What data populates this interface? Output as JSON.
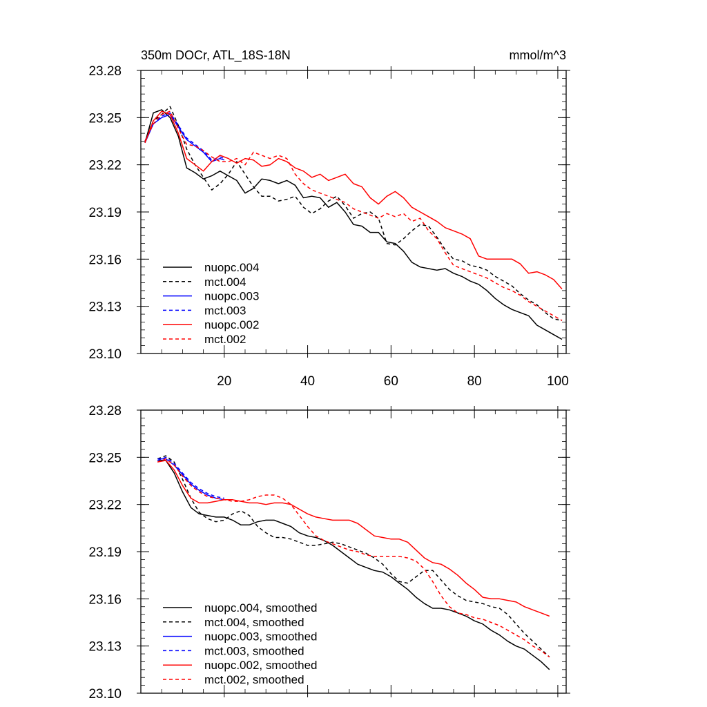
{
  "chart_data": [
    {
      "type": "line",
      "title": "350m DOCr, ATL_18S-18N",
      "units_label": "mmol/m^3",
      "xlabel": "",
      "ylabel": "",
      "xlim": [
        0,
        102
      ],
      "ylim": [
        23.1,
        23.28
      ],
      "yticks": [
        "23.28",
        "23.25",
        "23.22",
        "23.19",
        "23.16",
        "23.13",
        "23.10"
      ],
      "xticks": [
        "20",
        "40",
        "60",
        "80",
        "100"
      ],
      "show_xtick_labels": true,
      "legend_position": "bottom-left",
      "series": [
        {
          "name": "nuopc.004",
          "color": "#000000",
          "dash": "solid",
          "x": [
            1,
            3,
            5,
            7,
            9,
            11,
            13,
            15,
            17,
            19,
            21,
            23,
            25,
            27,
            29,
            31,
            33,
            35,
            37,
            39,
            41,
            43,
            45,
            47,
            49,
            51,
            53,
            55,
            57,
            59,
            61,
            63,
            65,
            67,
            69,
            71,
            73,
            75,
            77,
            79,
            81,
            83,
            85,
            87,
            89,
            91,
            93,
            95,
            97,
            99,
            101
          ],
          "y": [
            23.234,
            23.253,
            23.255,
            23.25,
            23.238,
            23.218,
            23.215,
            23.211,
            23.213,
            23.216,
            23.213,
            23.21,
            23.202,
            23.205,
            23.211,
            23.21,
            23.208,
            23.21,
            23.207,
            23.199,
            23.2,
            23.199,
            23.193,
            23.196,
            23.19,
            23.182,
            23.181,
            23.177,
            23.177,
            23.171,
            23.17,
            23.165,
            23.158,
            23.155,
            23.154,
            23.153,
            23.154,
            23.151,
            23.149,
            23.146,
            23.144,
            23.14,
            23.135,
            23.131,
            23.128,
            23.126,
            23.124,
            23.118,
            23.115,
            23.112,
            23.109
          ]
        },
        {
          "name": "mct.004",
          "color": "#000000",
          "dash": "dashed",
          "x": [
            1,
            3,
            5,
            7,
            9,
            11,
            13,
            15,
            17,
            19,
            21,
            23,
            25,
            27,
            29,
            31,
            33,
            35,
            37,
            39,
            41,
            43,
            45,
            47,
            49,
            51,
            53,
            55,
            57,
            59,
            61,
            63,
            65,
            67,
            69,
            71,
            73,
            75,
            77,
            79,
            81,
            83,
            85,
            87,
            89,
            91,
            93,
            95,
            97,
            99,
            101
          ],
          "y": [
            23.235,
            23.248,
            23.252,
            23.257,
            23.245,
            23.23,
            23.22,
            23.212,
            23.204,
            23.208,
            23.214,
            23.222,
            23.214,
            23.206,
            23.2,
            23.2,
            23.197,
            23.198,
            23.2,
            23.193,
            23.189,
            23.192,
            23.197,
            23.2,
            23.194,
            23.186,
            23.189,
            23.19,
            23.186,
            23.17,
            23.169,
            23.173,
            23.178,
            23.182,
            23.181,
            23.174,
            23.166,
            23.16,
            23.159,
            23.156,
            23.155,
            23.153,
            23.149,
            23.146,
            23.143,
            23.138,
            23.134,
            23.131,
            23.126,
            23.122,
            23.121
          ]
        },
        {
          "name": "nuopc.003",
          "color": "#0000ff",
          "dash": "solid",
          "x": [
            1,
            3,
            5,
            7,
            9,
            11,
            13,
            15,
            17,
            19,
            20
          ],
          "y": [
            23.234,
            23.246,
            23.25,
            23.252,
            23.244,
            23.236,
            23.232,
            23.228,
            23.222,
            23.224,
            23.223
          ]
        },
        {
          "name": "mct.003",
          "color": "#0000ff",
          "dash": "dashed",
          "x": [
            1,
            3,
            5,
            7,
            9,
            11,
            13,
            15,
            17,
            19,
            20
          ],
          "y": [
            23.235,
            23.246,
            23.251,
            23.253,
            23.245,
            23.237,
            23.233,
            23.229,
            23.223,
            23.225,
            23.224
          ]
        },
        {
          "name": "nuopc.002",
          "color": "#ff0000",
          "dash": "solid",
          "x": [
            1,
            3,
            5,
            7,
            9,
            11,
            13,
            15,
            17,
            19,
            21,
            23,
            25,
            27,
            29,
            31,
            33,
            35,
            37,
            39,
            41,
            43,
            45,
            47,
            49,
            51,
            53,
            55,
            57,
            59,
            61,
            63,
            65,
            67,
            69,
            71,
            73,
            75,
            77,
            79,
            81,
            83,
            85,
            87,
            89,
            91,
            93,
            95,
            97,
            99,
            101
          ],
          "y": [
            23.234,
            23.248,
            23.254,
            23.252,
            23.24,
            23.224,
            23.22,
            23.216,
            23.222,
            23.226,
            23.224,
            23.221,
            23.224,
            23.223,
            23.219,
            23.22,
            23.224,
            23.222,
            23.218,
            23.216,
            23.212,
            23.214,
            23.21,
            23.212,
            23.214,
            23.208,
            23.206,
            23.199,
            23.195,
            23.2,
            23.203,
            23.199,
            23.193,
            23.19,
            23.187,
            23.184,
            23.18,
            23.178,
            23.176,
            23.173,
            23.162,
            23.16,
            23.16,
            23.16,
            23.16,
            23.157,
            23.151,
            23.152,
            23.15,
            23.147,
            23.141
          ]
        },
        {
          "name": "mct.002",
          "color": "#ff0000",
          "dash": "dashed",
          "x": [
            1,
            3,
            5,
            7,
            9,
            11,
            13,
            15,
            17,
            19,
            21,
            23,
            25,
            27,
            29,
            31,
            33,
            35,
            37,
            39,
            41,
            43,
            45,
            47,
            49,
            51,
            53,
            55,
            57,
            59,
            61,
            63,
            65,
            67,
            69,
            71,
            73,
            75,
            77,
            79,
            81,
            83,
            85,
            87,
            89,
            91,
            93,
            95,
            97,
            99,
            101
          ],
          "y": [
            23.235,
            23.246,
            23.252,
            23.254,
            23.243,
            23.233,
            23.232,
            23.229,
            23.225,
            23.222,
            23.222,
            23.224,
            23.22,
            23.228,
            23.226,
            23.224,
            23.226,
            23.224,
            23.214,
            23.208,
            23.204,
            23.202,
            23.2,
            23.198,
            23.196,
            23.192,
            23.19,
            23.188,
            23.186,
            23.189,
            23.187,
            23.189,
            23.184,
            23.186,
            23.178,
            23.173,
            23.164,
            23.156,
            23.154,
            23.152,
            23.15,
            23.148,
            23.145,
            23.142,
            23.14,
            23.137,
            23.133,
            23.13,
            23.127,
            23.124,
            23.121
          ]
        }
      ]
    },
    {
      "type": "line",
      "title": "",
      "xlabel": "",
      "ylabel": "",
      "xlim": [
        0,
        102
      ],
      "ylim": [
        23.1,
        23.28
      ],
      "yticks": [
        "23.28",
        "23.25",
        "23.22",
        "23.19",
        "23.16",
        "23.13",
        "23.10"
      ],
      "xticks": [
        "20",
        "40",
        "60",
        "80",
        "100"
      ],
      "show_xtick_labels": false,
      "legend_position": "bottom-left",
      "series": [
        {
          "name": "nuopc.004, smoothed",
          "color": "#000000",
          "dash": "solid",
          "x": [
            4,
            6,
            8,
            10,
            12,
            14,
            16,
            18,
            20,
            22,
            24,
            26,
            28,
            30,
            32,
            34,
            36,
            38,
            40,
            42,
            44,
            46,
            48,
            50,
            52,
            54,
            56,
            58,
            60,
            62,
            64,
            66,
            68,
            70,
            72,
            74,
            76,
            78,
            80,
            82,
            84,
            86,
            88,
            90,
            92,
            94,
            96,
            98
          ],
          "y": [
            23.248,
            23.248,
            23.24,
            23.228,
            23.218,
            23.214,
            23.213,
            23.212,
            23.212,
            23.21,
            23.207,
            23.207,
            23.209,
            23.21,
            23.21,
            23.208,
            23.206,
            23.202,
            23.2,
            23.199,
            23.197,
            23.194,
            23.19,
            23.186,
            23.182,
            23.18,
            23.178,
            23.177,
            23.174,
            23.17,
            23.166,
            23.161,
            23.157,
            23.154,
            23.154,
            23.153,
            23.151,
            23.149,
            23.146,
            23.144,
            23.14,
            23.137,
            23.133,
            23.13,
            23.128,
            23.124,
            23.12,
            23.115
          ]
        },
        {
          "name": "mct.004, smoothed",
          "color": "#000000",
          "dash": "dashed",
          "x": [
            4,
            6,
            8,
            10,
            12,
            14,
            16,
            18,
            20,
            22,
            24,
            26,
            28,
            30,
            32,
            34,
            36,
            38,
            40,
            42,
            44,
            46,
            48,
            50,
            52,
            54,
            56,
            58,
            60,
            62,
            64,
            66,
            68,
            70,
            72,
            74,
            76,
            78,
            80,
            82,
            84,
            86,
            88,
            90,
            92,
            94,
            96,
            98
          ],
          "y": [
            23.249,
            23.251,
            23.247,
            23.236,
            23.224,
            23.215,
            23.211,
            23.209,
            23.21,
            23.214,
            23.216,
            23.213,
            23.206,
            23.202,
            23.199,
            23.199,
            23.198,
            23.196,
            23.194,
            23.194,
            23.195,
            23.196,
            23.195,
            23.193,
            23.191,
            23.189,
            23.186,
            23.182,
            23.176,
            23.171,
            23.17,
            23.174,
            23.178,
            23.178,
            23.172,
            23.166,
            23.162,
            23.159,
            23.158,
            23.157,
            23.155,
            23.154,
            23.15,
            23.144,
            23.138,
            23.133,
            23.128,
            23.123
          ]
        },
        {
          "name": "nuopc.003, smoothed",
          "color": "#0000ff",
          "dash": "solid",
          "x": [
            4,
            6,
            8,
            10,
            12,
            14,
            16,
            18,
            20
          ],
          "y": [
            23.249,
            23.249,
            23.245,
            23.239,
            23.233,
            23.229,
            23.226,
            23.224,
            23.223
          ]
        },
        {
          "name": "mct.003, smoothed",
          "color": "#0000ff",
          "dash": "dashed",
          "x": [
            4,
            6,
            8,
            10,
            12,
            14,
            16,
            18,
            20
          ],
          "y": [
            23.248,
            23.25,
            23.246,
            23.24,
            23.234,
            23.23,
            23.227,
            23.225,
            23.224
          ]
        },
        {
          "name": "nuopc.002, smoothed",
          "color": "#ff0000",
          "dash": "solid",
          "x": [
            4,
            6,
            8,
            10,
            12,
            14,
            16,
            18,
            20,
            22,
            24,
            26,
            28,
            30,
            32,
            34,
            36,
            38,
            40,
            42,
            44,
            46,
            48,
            50,
            52,
            54,
            56,
            58,
            60,
            62,
            64,
            66,
            68,
            70,
            72,
            74,
            76,
            78,
            80,
            82,
            84,
            86,
            88,
            90,
            92,
            94,
            96,
            98
          ],
          "y": [
            23.247,
            23.248,
            23.242,
            23.232,
            23.224,
            23.221,
            23.221,
            23.222,
            23.223,
            23.223,
            23.222,
            23.221,
            23.221,
            23.22,
            23.221,
            23.221,
            23.22,
            23.217,
            23.214,
            23.212,
            23.211,
            23.21,
            23.21,
            23.21,
            23.208,
            23.204,
            23.2,
            23.199,
            23.198,
            23.198,
            23.196,
            23.191,
            23.186,
            23.183,
            23.182,
            23.179,
            23.175,
            23.17,
            23.166,
            23.161,
            23.16,
            23.16,
            23.159,
            23.158,
            23.155,
            23.153,
            23.151,
            23.149
          ]
        },
        {
          "name": "mct.002, smoothed",
          "color": "#ff0000",
          "dash": "dashed",
          "x": [
            4,
            6,
            8,
            10,
            12,
            14,
            16,
            18,
            20,
            22,
            24,
            26,
            28,
            30,
            32,
            34,
            36,
            38,
            40,
            42,
            44,
            46,
            48,
            50,
            52,
            54,
            56,
            58,
            60,
            62,
            64,
            66,
            68,
            70,
            72,
            74,
            76,
            78,
            80,
            82,
            84,
            86,
            88,
            90,
            92,
            94,
            96,
            98
          ],
          "y": [
            23.247,
            23.249,
            23.245,
            23.238,
            23.232,
            23.228,
            23.225,
            23.224,
            23.223,
            23.222,
            23.222,
            23.223,
            23.225,
            23.226,
            23.226,
            23.224,
            23.22,
            23.213,
            23.206,
            23.2,
            23.197,
            23.195,
            23.193,
            23.191,
            23.19,
            23.188,
            23.187,
            23.187,
            23.187,
            23.187,
            23.186,
            23.184,
            23.179,
            23.171,
            23.162,
            23.155,
            23.151,
            23.15,
            23.148,
            23.147,
            23.145,
            23.143,
            23.14,
            23.137,
            23.134,
            23.13,
            23.127,
            23.123
          ]
        }
      ]
    }
  ]
}
